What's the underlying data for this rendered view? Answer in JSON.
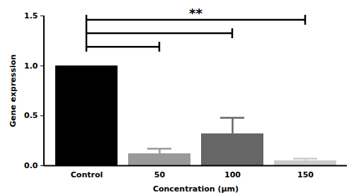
{
  "chart_data": {
    "type": "bar",
    "categories": [
      "Control",
      "50",
      "100",
      "150"
    ],
    "values": [
      1.0,
      0.12,
      0.32,
      0.05
    ],
    "errors": [
      0,
      0.05,
      0.16,
      0.02
    ],
    "colors": [
      "#000000",
      "#999999",
      "#666666",
      "#cccccc"
    ],
    "x_label": "Concentration (µm)",
    "y_label": "Gene expression",
    "ylim": [
      0,
      1.5
    ],
    "yticks": [
      {
        "value": 0,
        "label": "0.0"
      },
      {
        "value": 0.5,
        "label": "0.5"
      },
      {
        "value": 1.0,
        "label": "1.0"
      },
      {
        "value": 1.5,
        "label": "1.5"
      }
    ],
    "grid": false,
    "comparisons": [
      [
        "Control",
        "50"
      ],
      [
        "Control",
        "100"
      ],
      [
        "Control",
        "150"
      ]
    ],
    "annotation": "**"
  }
}
